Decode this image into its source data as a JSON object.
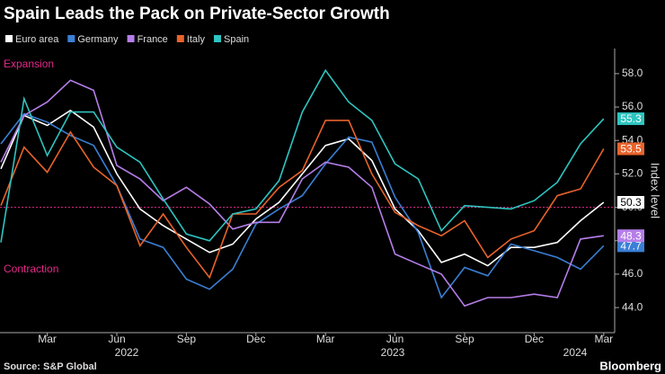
{
  "chart_data": {
    "type": "line",
    "title": "Spain Leads the Pack on Private-Sector Growth",
    "y_label": "Index level",
    "annotations": [
      "Expansion",
      "Contraction"
    ],
    "source": "Source: S&P Global",
    "brand": "Bloomberg",
    "categories": [
      null,
      null,
      "Mar",
      null,
      null,
      "Jun",
      null,
      null,
      "Sep",
      null,
      null,
      "Dec",
      null,
      null,
      "Mar",
      null,
      null,
      "Jun",
      null,
      null,
      "Sep",
      null,
      null,
      "Dec",
      null,
      null,
      "Mar"
    ],
    "year_labels": [
      "2022",
      "2023",
      "2024"
    ],
    "ylim": [
      42.5,
      59.5
    ],
    "yticks": [
      {
        "value": 44,
        "label": "44.0"
      },
      {
        "value": 46,
        "label": "46.0"
      },
      {
        "value": 48,
        "label": "48.0"
      },
      {
        "value": 50,
        "label": "50.0"
      },
      {
        "value": 52,
        "label": "52.0"
      },
      {
        "value": 54,
        "label": "54.0"
      },
      {
        "value": 56,
        "label": "56.0"
      },
      {
        "value": 58,
        "label": "58.0"
      }
    ],
    "reference_line": 50,
    "reference_color": "#e6288a",
    "series": [
      {
        "name": "Euro area",
        "color": "#ffffff",
        "values": [
          52.3,
          55.5,
          54.9,
          55.8,
          54.8,
          52.0,
          49.9,
          48.9,
          48.1,
          47.3,
          47.8,
          49.3,
          50.3,
          52.0,
          53.7,
          54.1,
          52.8,
          49.9,
          48.6,
          46.7,
          47.2,
          46.5,
          47.6,
          47.6,
          47.9,
          49.2,
          50.3
        ]
      },
      {
        "name": "Germany",
        "color": "#3a7fd5",
        "values": [
          53.8,
          55.6,
          55.1,
          54.3,
          53.7,
          51.3,
          48.1,
          47.6,
          45.7,
          45.1,
          46.3,
          49.0,
          49.9,
          50.7,
          52.6,
          54.2,
          53.9,
          50.6,
          48.5,
          44.6,
          46.4,
          45.9,
          47.8,
          47.4,
          47.0,
          46.3,
          47.7
        ]
      },
      {
        "name": "France",
        "color": "#b57ee8",
        "values": [
          52.7,
          55.5,
          56.3,
          57.6,
          57.0,
          52.5,
          51.7,
          50.4,
          51.2,
          50.2,
          48.7,
          49.1,
          49.1,
          51.7,
          52.7,
          52.4,
          51.2,
          47.2,
          46.6,
          46.0,
          44.1,
          44.6,
          44.6,
          44.8,
          44.6,
          48.1,
          48.3
        ]
      },
      {
        "name": "Italy",
        "color": "#e8632b",
        "values": [
          50.1,
          53.6,
          52.1,
          54.5,
          52.4,
          51.3,
          47.7,
          49.6,
          47.6,
          45.8,
          49.6,
          49.6,
          51.2,
          52.2,
          55.2,
          55.2,
          52.0,
          49.7,
          48.9,
          48.3,
          49.2,
          47.0,
          48.1,
          48.6,
          50.7,
          51.1,
          53.5
        ]
      },
      {
        "name": "Spain",
        "color": "#2ec4c0",
        "values": [
          47.9,
          56.5,
          53.1,
          55.7,
          55.7,
          53.6,
          52.7,
          50.5,
          48.4,
          48.0,
          49.6,
          49.9,
          51.6,
          55.7,
          58.2,
          56.3,
          55.2,
          52.6,
          51.7,
          48.6,
          50.1,
          50.0,
          49.9,
          50.4,
          51.5,
          53.8,
          55.3
        ]
      }
    ]
  }
}
